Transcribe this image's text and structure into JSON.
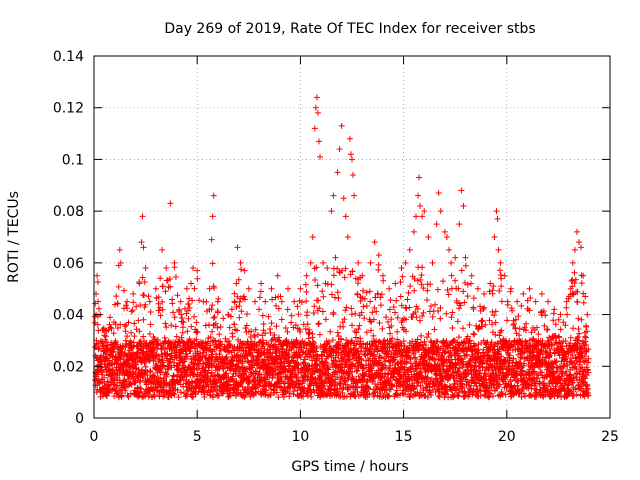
{
  "chart_data": {
    "type": "scatter",
    "title": "Day 269 of 2019, Rate Of TEC Index for receiver stbs",
    "xlabel": "GPS time / hours",
    "ylabel": "ROTI / TECUs",
    "xlim": [
      0,
      25
    ],
    "ylim": [
      0,
      0.14
    ],
    "xticks": [
      0,
      5,
      10,
      15,
      20,
      25
    ],
    "yticks": [
      0,
      0.02,
      0.04,
      0.06,
      0.08,
      0.1,
      0.12,
      0.14
    ],
    "xtick_labels": [
      "0",
      "5",
      "10",
      "15",
      "20",
      "25"
    ],
    "ytick_labels": [
      "0",
      "0.02",
      "0.04",
      "0.06",
      "0.08",
      "0.1",
      "0.12",
      "0.14"
    ],
    "grid": true,
    "marker": "+",
    "color": "#ff0000",
    "series": [
      {
        "name": "ROTI",
        "points": [
          [
            0.1,
            0.048
          ],
          [
            0.15,
            0.055
          ],
          [
            0.2,
            0.045
          ],
          [
            0.3,
            0.04
          ],
          [
            0.5,
            0.032
          ],
          [
            0.8,
            0.035
          ],
          [
            1.2,
            0.059
          ],
          [
            1.25,
            0.065
          ],
          [
            1.3,
            0.06
          ],
          [
            1.6,
            0.045
          ],
          [
            1.9,
            0.048
          ],
          [
            2.2,
            0.052
          ],
          [
            2.3,
            0.068
          ],
          [
            2.35,
            0.078
          ],
          [
            2.4,
            0.066
          ],
          [
            2.5,
            0.058
          ],
          [
            2.7,
            0.045
          ],
          [
            3.0,
            0.05
          ],
          [
            3.3,
            0.065
          ],
          [
            3.5,
            0.058
          ],
          [
            3.7,
            0.083
          ],
          [
            3.9,
            0.06
          ],
          [
            4.2,
            0.045
          ],
          [
            4.5,
            0.05
          ],
          [
            4.7,
            0.052
          ],
          [
            4.8,
            0.058
          ],
          [
            5.0,
            0.057
          ],
          [
            5.3,
            0.045
          ],
          [
            5.6,
            0.05
          ],
          [
            5.7,
            0.069
          ],
          [
            5.75,
            0.078
          ],
          [
            5.8,
            0.086
          ],
          [
            6.0,
            0.045
          ],
          [
            6.5,
            0.04
          ],
          [
            6.8,
            0.045
          ],
          [
            6.9,
            0.052
          ],
          [
            6.95,
            0.066
          ],
          [
            7.1,
            0.06
          ],
          [
            7.3,
            0.057
          ],
          [
            7.5,
            0.05
          ],
          [
            7.8,
            0.045
          ],
          [
            8.1,
            0.052
          ],
          [
            8.3,
            0.045
          ],
          [
            8.6,
            0.05
          ],
          [
            8.9,
            0.055
          ],
          [
            9.1,
            0.045
          ],
          [
            9.4,
            0.05
          ],
          [
            9.7,
            0.045
          ],
          [
            10.0,
            0.05
          ],
          [
            10.3,
            0.055
          ],
          [
            10.5,
            0.06
          ],
          [
            10.6,
            0.07
          ],
          [
            10.7,
            0.112
          ],
          [
            10.75,
            0.12
          ],
          [
            10.8,
            0.124
          ],
          [
            10.85,
            0.118
          ],
          [
            10.9,
            0.107
          ],
          [
            10.95,
            0.101
          ],
          [
            11.1,
            0.06
          ],
          [
            11.3,
            0.058
          ],
          [
            11.5,
            0.08
          ],
          [
            11.6,
            0.086
          ],
          [
            11.7,
            0.062
          ],
          [
            11.8,
            0.095
          ],
          [
            11.9,
            0.104
          ],
          [
            12.0,
            0.113
          ],
          [
            12.1,
            0.085
          ],
          [
            12.2,
            0.078
          ],
          [
            12.3,
            0.07
          ],
          [
            12.4,
            0.108
          ],
          [
            12.45,
            0.102
          ],
          [
            12.5,
            0.1
          ],
          [
            12.55,
            0.094
          ],
          [
            12.6,
            0.086
          ],
          [
            12.8,
            0.06
          ],
          [
            13.0,
            0.055
          ],
          [
            13.4,
            0.06
          ],
          [
            13.6,
            0.068
          ],
          [
            13.8,
            0.063
          ],
          [
            14.0,
            0.055
          ],
          [
            14.3,
            0.05
          ],
          [
            14.6,
            0.052
          ],
          [
            14.9,
            0.058
          ],
          [
            15.1,
            0.06
          ],
          [
            15.3,
            0.065
          ],
          [
            15.5,
            0.072
          ],
          [
            15.6,
            0.078
          ],
          [
            15.7,
            0.086
          ],
          [
            15.75,
            0.093
          ],
          [
            15.8,
            0.082
          ],
          [
            15.9,
            0.078
          ],
          [
            16.0,
            0.08
          ],
          [
            16.2,
            0.07
          ],
          [
            16.4,
            0.06
          ],
          [
            16.6,
            0.075
          ],
          [
            16.7,
            0.087
          ],
          [
            16.8,
            0.08
          ],
          [
            17.0,
            0.072
          ],
          [
            17.1,
            0.07
          ],
          [
            17.2,
            0.065
          ],
          [
            17.3,
            0.06
          ],
          [
            17.5,
            0.062
          ],
          [
            17.7,
            0.075
          ],
          [
            17.8,
            0.088
          ],
          [
            17.9,
            0.082
          ],
          [
            18.0,
            0.062
          ],
          [
            18.3,
            0.055
          ],
          [
            18.6,
            0.05
          ],
          [
            18.9,
            0.048
          ],
          [
            19.2,
            0.052
          ],
          [
            19.4,
            0.07
          ],
          [
            19.5,
            0.08
          ],
          [
            19.55,
            0.077
          ],
          [
            19.6,
            0.065
          ],
          [
            19.7,
            0.06
          ],
          [
            19.9,
            0.055
          ],
          [
            20.2,
            0.05
          ],
          [
            20.5,
            0.045
          ],
          [
            20.8,
            0.048
          ],
          [
            21.1,
            0.05
          ],
          [
            21.4,
            0.045
          ],
          [
            21.7,
            0.048
          ],
          [
            22.0,
            0.045
          ],
          [
            22.3,
            0.042
          ],
          [
            22.6,
            0.04
          ],
          [
            22.9,
            0.045
          ],
          [
            23.1,
            0.05
          ],
          [
            23.2,
            0.06
          ],
          [
            23.3,
            0.065
          ],
          [
            23.4,
            0.072
          ],
          [
            23.5,
            0.068
          ],
          [
            23.6,
            0.066
          ],
          [
            23.7,
            0.055
          ],
          [
            23.8,
            0.047
          ],
          [
            23.9,
            0.04
          ]
        ]
      }
    ]
  }
}
